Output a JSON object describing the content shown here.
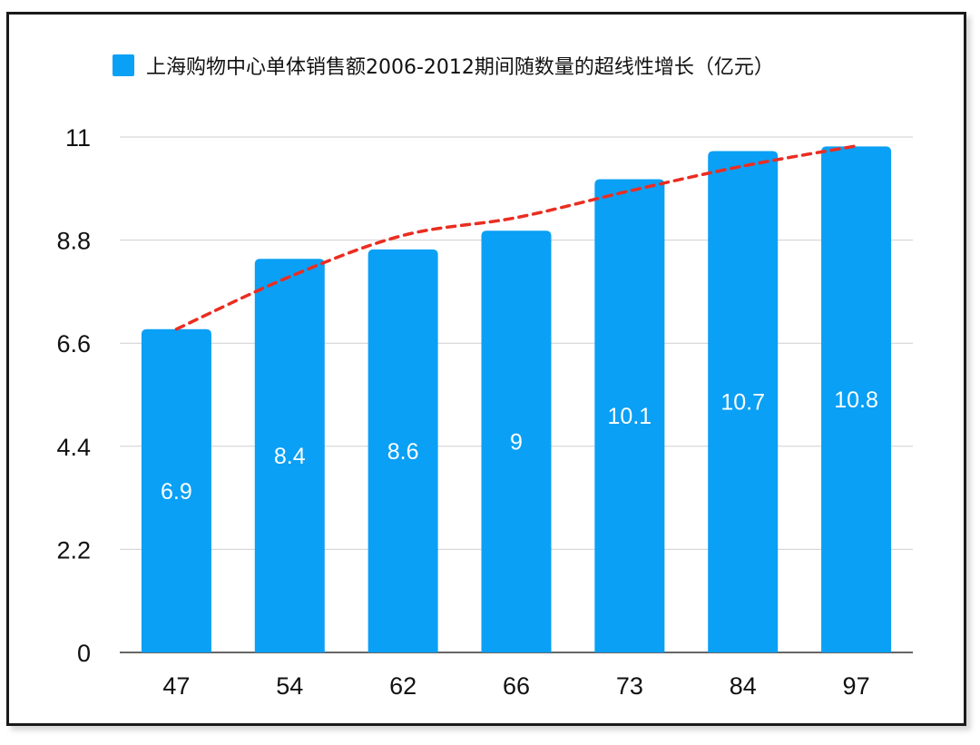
{
  "chart_data": {
    "type": "bar",
    "title": "",
    "xlabel": "",
    "ylabel": "",
    "categories": [
      "47",
      "54",
      "62",
      "66",
      "73",
      "84",
      "97"
    ],
    "values": [
      6.9,
      8.4,
      8.6,
      9,
      10.1,
      10.7,
      10.8
    ],
    "data_labels": [
      "6.9",
      "8.4",
      "8.6",
      "9",
      "10.1",
      "10.7",
      "10.8"
    ],
    "series": [
      {
        "name": "上海购物中心单体销售额2006-2012期间随数量的超线性增长（亿元）",
        "values": [
          6.9,
          8.4,
          8.6,
          9,
          10.1,
          10.7,
          10.8
        ]
      }
    ],
    "yticks": [
      0,
      2.2,
      4.4,
      6.6,
      8.8,
      11
    ],
    "ytick_labels": [
      "0",
      "2.2",
      "4.4",
      "6.6",
      "8.8",
      "11"
    ],
    "ylim": [
      0,
      11
    ],
    "grid": true,
    "legend_position": "top",
    "trendline": {
      "style": "dashed",
      "kind": "logarithmic",
      "from_category": "47",
      "to_category": "97",
      "values": [
        6.9,
        8.02,
        8.9,
        9.28,
        9.85,
        10.38,
        10.81
      ]
    },
    "colors": {
      "bar": "#0aa0f5",
      "trendline": "#ea2d21",
      "grid": "#cfcfcf",
      "axis": "#333333",
      "text": "#111111",
      "data_label": "#ffffff"
    }
  }
}
